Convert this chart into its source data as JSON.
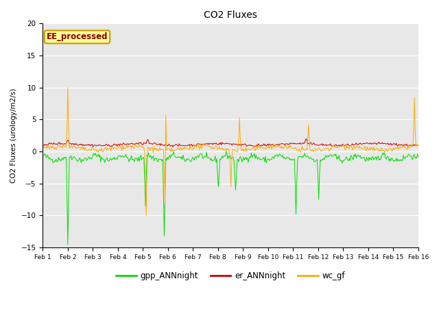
{
  "title": "CO2 Fluxes",
  "ylabel": "CO2 Fluxes (urology/m2/s)",
  "ylim": [
    -15,
    20
  ],
  "yticks": [
    -15,
    -10,
    -5,
    0,
    5,
    10,
    15,
    20
  ],
  "fig_bg": "#ffffff",
  "plot_bg": "#e8e8e8",
  "line_colors": {
    "gpp": "#00dd00",
    "er": "#cc0000",
    "wc": "#ffaa00"
  },
  "legend_labels": [
    "gpp_ANNnight",
    "er_ANNnight",
    "wc_gf"
  ],
  "annotation_text": "EE_processed",
  "annotation_bg": "#ffff99",
  "annotation_border": "#cc0000",
  "n_points": 480,
  "seed": 42
}
